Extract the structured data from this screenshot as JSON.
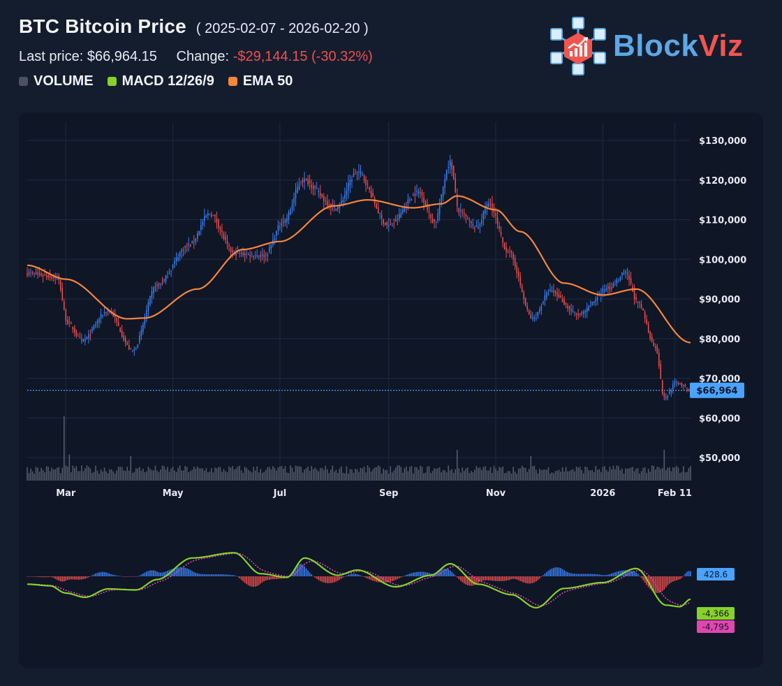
{
  "header": {
    "title": "BTC Bitcoin Price",
    "date_range": "( 2025-02-07 - 2026-02-20 )",
    "last_price_label": "Last price:",
    "last_price_value": "$66,964.15",
    "change_label": "Change:",
    "change_value": "-$29,144.15 (-30.32%)"
  },
  "legend": [
    {
      "label": "VOLUME",
      "color": "#4a5262"
    },
    {
      "label": "MACD 12/26/9",
      "color": "#88d12a"
    },
    {
      "label": "EMA 50",
      "color": "#f5863c"
    }
  ],
  "logo": {
    "part1": "Block",
    "part2": "Viz"
  },
  "colors": {
    "up": "#3b82f6",
    "down": "#ef4f4f",
    "ema": "#f5863c",
    "macd": "#88d12a",
    "signal": "#e046b0",
    "volume": "#606878",
    "last_price": "#4aa3ff",
    "background": "#0f1626"
  },
  "chart_data": {
    "type": "candlestick",
    "title": "BTC Bitcoin Price",
    "date_range": [
      "2025-02-07",
      "2026-02-20"
    ],
    "y_ticks": [
      "$130,000",
      "$120,000",
      "$110,000",
      "$100,000",
      "$90,000",
      "$80,000",
      "$70,000",
      "$60,000",
      "$50,000"
    ],
    "y_tick_values": [
      130000,
      120000,
      110000,
      100000,
      90000,
      80000,
      70000,
      60000,
      50000
    ],
    "ylim": [
      45000,
      134000
    ],
    "x_ticks": [
      {
        "label": "Mar",
        "date": "2025-03-01"
      },
      {
        "label": "May",
        "date": "2025-05-01"
      },
      {
        "label": "Jul",
        "date": "2025-07-01"
      },
      {
        "label": "Sep",
        "date": "2025-09-01"
      },
      {
        "label": "Nov",
        "date": "2025-11-01"
      },
      {
        "label": "2026",
        "date": "2026-01-01"
      },
      {
        "label": "Feb 11",
        "date": "2026-02-11"
      }
    ],
    "close_anchors": [
      {
        "date": "2025-02-07",
        "value": 96500
      },
      {
        "date": "2025-02-24",
        "value": 95500
      },
      {
        "date": "2025-03-02",
        "value": 84000
      },
      {
        "date": "2025-03-10",
        "value": 79500
      },
      {
        "date": "2025-03-25",
        "value": 87000
      },
      {
        "date": "2025-04-08",
        "value": 77000
      },
      {
        "date": "2025-04-22",
        "value": 93500
      },
      {
        "date": "2025-05-10",
        "value": 103500
      },
      {
        "date": "2025-05-22",
        "value": 111500
      },
      {
        "date": "2025-06-05",
        "value": 101500
      },
      {
        "date": "2025-06-22",
        "value": 101000
      },
      {
        "date": "2025-07-03",
        "value": 109500
      },
      {
        "date": "2025-07-14",
        "value": 120000
      },
      {
        "date": "2025-08-02",
        "value": 113000
      },
      {
        "date": "2025-08-14",
        "value": 122000
      },
      {
        "date": "2025-09-01",
        "value": 108500
      },
      {
        "date": "2025-09-18",
        "value": 117000
      },
      {
        "date": "2025-09-27",
        "value": 109500
      },
      {
        "date": "2025-10-06",
        "value": 124500
      },
      {
        "date": "2025-10-11",
        "value": 112000
      },
      {
        "date": "2025-10-21",
        "value": 108000
      },
      {
        "date": "2025-10-28",
        "value": 114000
      },
      {
        "date": "2025-11-08",
        "value": 102000
      },
      {
        "date": "2025-11-22",
        "value": 85000
      },
      {
        "date": "2025-12-02",
        "value": 92000
      },
      {
        "date": "2025-12-18",
        "value": 86000
      },
      {
        "date": "2026-01-05",
        "value": 93000
      },
      {
        "date": "2026-01-14",
        "value": 96500
      },
      {
        "date": "2026-01-21",
        "value": 89000
      },
      {
        "date": "2026-01-31",
        "value": 78000
      },
      {
        "date": "2026-02-05",
        "value": 65000
      },
      {
        "date": "2026-02-12",
        "value": 69000
      },
      {
        "date": "2026-02-20",
        "value": 66964.15
      }
    ],
    "ema50_anchors": [
      {
        "date": "2025-02-07",
        "value": 98500
      },
      {
        "date": "2025-03-01",
        "value": 95000
      },
      {
        "date": "2025-04-05",
        "value": 85000
      },
      {
        "date": "2025-04-15",
        "value": 85200
      },
      {
        "date": "2025-05-15",
        "value": 92500
      },
      {
        "date": "2025-06-10",
        "value": 102500
      },
      {
        "date": "2025-07-01",
        "value": 104500
      },
      {
        "date": "2025-08-01",
        "value": 113500
      },
      {
        "date": "2025-08-20",
        "value": 115000
      },
      {
        "date": "2025-09-15",
        "value": 113000
      },
      {
        "date": "2025-10-01",
        "value": 114000
      },
      {
        "date": "2025-10-10",
        "value": 116000
      },
      {
        "date": "2025-11-01",
        "value": 112500
      },
      {
        "date": "2025-11-15",
        "value": 107000
      },
      {
        "date": "2025-12-10",
        "value": 94000
      },
      {
        "date": "2026-01-01",
        "value": 91000
      },
      {
        "date": "2026-01-20",
        "value": 92500
      },
      {
        "date": "2026-02-20",
        "value": 79000
      }
    ],
    "macd_anchors": [
      {
        "date": "2025-02-07",
        "value": -1500
      },
      {
        "date": "2025-02-20",
        "value": -1800
      },
      {
        "date": "2025-03-01",
        "value": -3200
      },
      {
        "date": "2025-03-12",
        "value": -4000
      },
      {
        "date": "2025-03-25",
        "value": -2400
      },
      {
        "date": "2025-04-10",
        "value": -2600
      },
      {
        "date": "2025-04-22",
        "value": -600
      },
      {
        "date": "2025-05-12",
        "value": 3500
      },
      {
        "date": "2025-06-05",
        "value": 4500
      },
      {
        "date": "2025-06-20",
        "value": 500
      },
      {
        "date": "2025-07-05",
        "value": -200
      },
      {
        "date": "2025-07-15",
        "value": 3500
      },
      {
        "date": "2025-08-03",
        "value": 200
      },
      {
        "date": "2025-08-14",
        "value": 1200
      },
      {
        "date": "2025-09-05",
        "value": -2000
      },
      {
        "date": "2025-09-25",
        "value": 200
      },
      {
        "date": "2025-10-06",
        "value": 2400
      },
      {
        "date": "2025-10-22",
        "value": -1500
      },
      {
        "date": "2025-11-10",
        "value": -3500
      },
      {
        "date": "2025-11-24",
        "value": -6000
      },
      {
        "date": "2025-12-10",
        "value": -2300
      },
      {
        "date": "2026-01-01",
        "value": -1200
      },
      {
        "date": "2026-01-20",
        "value": 1500
      },
      {
        "date": "2026-02-06",
        "value": -5500
      },
      {
        "date": "2026-02-14",
        "value": -5800
      },
      {
        "date": "2026-02-20",
        "value": -4366
      }
    ],
    "macd_last": "-4,366",
    "signal_last": "-4,795",
    "histogram_last": "428.6",
    "last_price_label": "$66,964",
    "last_price": 66964.15,
    "volume_spikes": [
      {
        "date": "2025-02-28",
        "value": 4.2
      },
      {
        "date": "2025-03-03",
        "value": 1.7
      },
      {
        "date": "2025-04-07",
        "value": 1.6
      },
      {
        "date": "2025-10-10",
        "value": 2.0
      },
      {
        "date": "2025-11-21",
        "value": 1.6
      },
      {
        "date": "2026-02-05",
        "value": 2.0
      }
    ]
  }
}
